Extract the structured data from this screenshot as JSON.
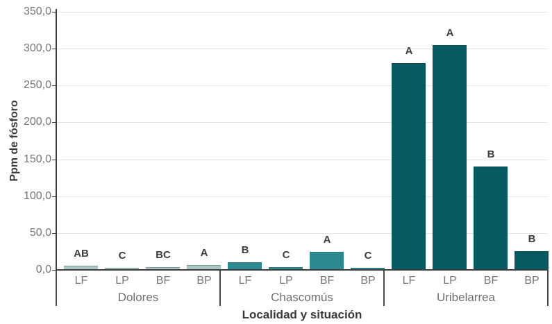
{
  "chart_data": {
    "type": "bar",
    "title": "",
    "xlabel": "Localidad y situación",
    "ylabel": "Ppm de fósforo",
    "ylim": [
      0,
      350
    ],
    "ytick_step": 50,
    "ytick_labels": [
      "0,0",
      "50,0",
      "100,0",
      "150,0",
      "200,0",
      "250,0",
      "300,0",
      "350,0"
    ],
    "categories": [
      "LF",
      "LP",
      "BF",
      "BP"
    ],
    "groups": [
      {
        "label": "Dolores",
        "color": "#a9c5c4",
        "values": [
          6,
          3,
          4,
          7
        ],
        "letters": [
          "AB",
          "C",
          "BC",
          "A"
        ]
      },
      {
        "label": "Chascomús",
        "color": "#2e8a91",
        "values": [
          10,
          4,
          24,
          3
        ],
        "letters": [
          "B",
          "C",
          "A",
          "C"
        ]
      },
      {
        "label": "Uribelarrea",
        "color": "#075a61",
        "values": [
          280,
          305,
          140,
          25
        ],
        "letters": [
          "A",
          "A",
          "B",
          "B"
        ]
      }
    ],
    "grid": true,
    "legend": false
  }
}
